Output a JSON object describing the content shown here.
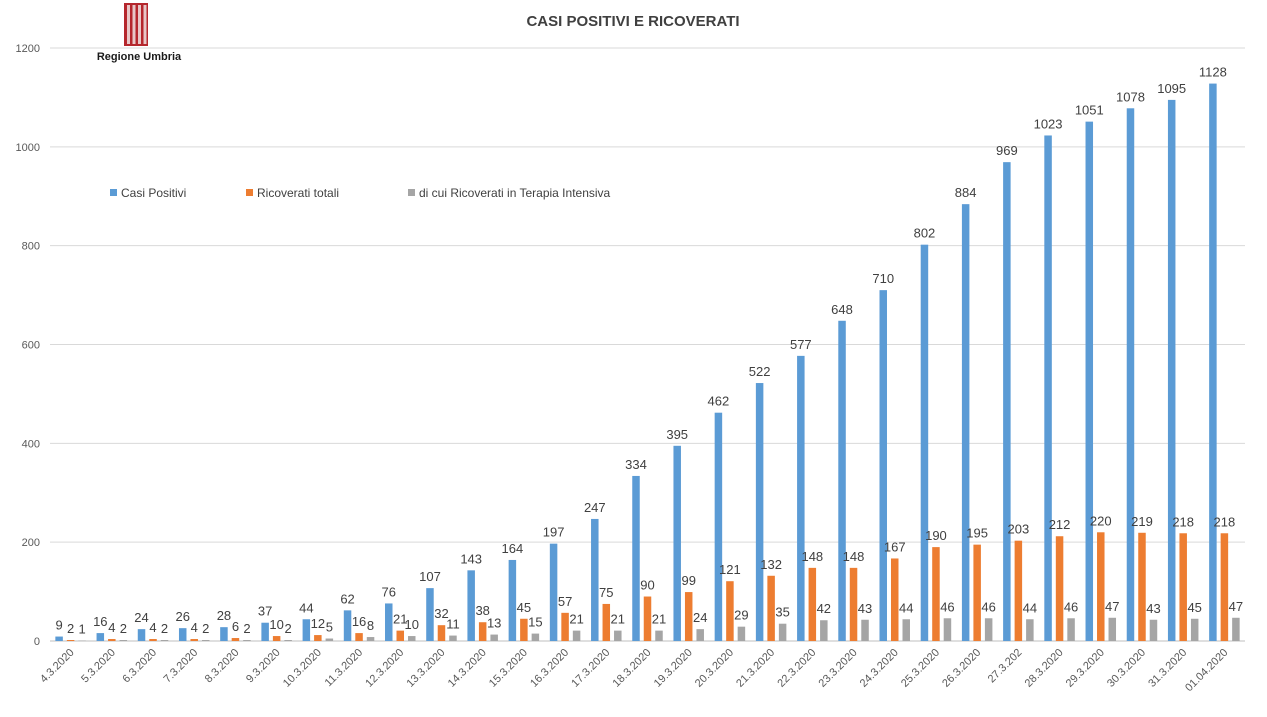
{
  "colors": {
    "casi": "#5b9bd5",
    "ricoverati": "#ed7d31",
    "terapia": "#a5a5a5",
    "logo_red": "#b5272d"
  },
  "logo": {
    "text": "Regione Umbria",
    "icon": "regione-umbria-logo"
  },
  "chart_data": {
    "type": "bar",
    "title": "CASI POSITIVI E RICOVERATI",
    "xlabel": "",
    "ylabel": "",
    "ylim": [
      0,
      1200
    ],
    "yticks": [
      0,
      200,
      400,
      600,
      800,
      1000,
      1200
    ],
    "grid": true,
    "legend_position": "top-left",
    "categories": [
      "4.3.2020",
      "5.3.2020",
      "6.3.2020",
      "7.3.2020",
      "8.3.2020",
      "9.3.2020",
      "10.3.2020",
      "11.3.2020",
      "12.3.2020",
      "13.3.2020",
      "14.3.2020",
      "15.3.2020",
      "16.3.2020",
      "17.3.2020",
      "18.3.2020",
      "19.3.2020",
      "20.3.2020",
      "21.3.2020",
      "22.3.2020",
      "23.3.2020",
      "24.3.2020",
      "25.3.2020",
      "26.3.2020",
      "27.3.202",
      "28.3.2020",
      "29.3.2020",
      "30.3.2020",
      "31.3.2020",
      "01.04.2020"
    ],
    "series": [
      {
        "name": "Casi Positivi",
        "values": [
          9,
          16,
          24,
          26,
          28,
          37,
          44,
          62,
          76,
          107,
          143,
          164,
          197,
          247,
          334,
          395,
          462,
          522,
          577,
          648,
          710,
          802,
          884,
          969,
          1023,
          1051,
          1078,
          1095,
          1128
        ]
      },
      {
        "name": "Ricoverati totali",
        "values": [
          2,
          4,
          4,
          4,
          6,
          10,
          12,
          16,
          21,
          32,
          38,
          45,
          57,
          75,
          90,
          99,
          121,
          132,
          148,
          148,
          167,
          190,
          195,
          203,
          212,
          220,
          219,
          218,
          218
        ]
      },
      {
        "name": "di cui Ricoverati in Terapia Intensiva",
        "values": [
          1,
          2,
          2,
          2,
          2,
          2,
          5,
          8,
          10,
          11,
          13,
          15,
          21,
          21,
          21,
          24,
          29,
          35,
          42,
          43,
          44,
          46,
          46,
          44,
          46,
          47,
          43,
          45,
          47
        ]
      }
    ]
  }
}
